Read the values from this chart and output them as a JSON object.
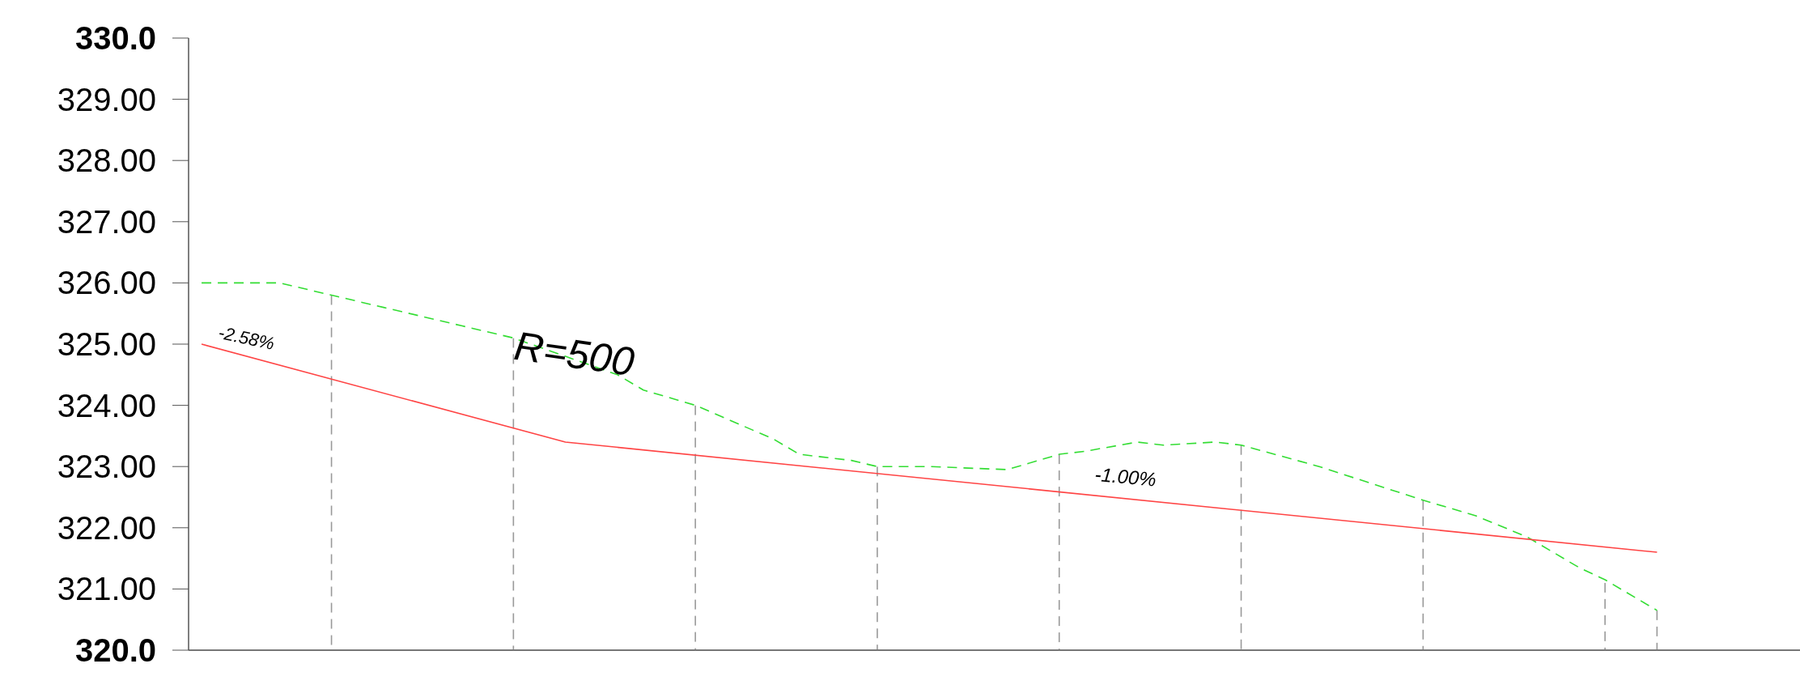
{
  "chart_data": {
    "type": "line",
    "categories": [
      null,
      null,
      null,
      null,
      null,
      null,
      null,
      null,
      null,
      null,
      null,
      null,
      null,
      null,
      null,
      null,
      null,
      null,
      null,
      null,
      null,
      null,
      null,
      null,
      null,
      null,
      null,
      null,
      null,
      null,
      null,
      null,
      null,
      null,
      null,
      null,
      null,
      null,
      null,
      null,
      null,
      null,
      null,
      null,
      null,
      null,
      null,
      null,
      null,
      null,
      null,
      null,
      null,
      null,
      null,
      null,
      null,
      null,
      null,
      null,
      null,
      null
    ],
    "series": [
      {
        "type": "bar",
        "color": "#999999",
        "line_style": "dashed",
        "values": [
          null,
          null,
          null,
          null,
          null,
          325.8,
          null,
          null,
          null,
          null,
          null,
          null,
          325.1,
          null,
          null,
          null,
          null,
          null,
          null,
          324.0,
          null,
          null,
          null,
          null,
          null,
          null,
          323.0,
          null,
          null,
          null,
          null,
          null,
          null,
          323.2,
          null,
          null,
          null,
          null,
          null,
          null,
          323.35,
          null,
          null,
          null,
          null,
          null,
          null,
          322.45,
          null,
          null,
          null,
          null,
          null,
          null,
          321.1,
          null,
          320.65,
          null,
          null,
          null,
          null,
          null
        ]
      },
      {
        "color": "#33dd33",
        "line_style": "dashed",
        "values": [
          326.0,
          null,
          null,
          326.0,
          null,
          325.8,
          null,
          325.6,
          null,
          null,
          325.3,
          null,
          325.1,
          null,
          324.8,
          null,
          324.5,
          324.25,
          null,
          324.0,
          null,
          null,
          323.45,
          323.2,
          null,
          323.1,
          323.0,
          null,
          323.0,
          null,
          null,
          322.95,
          null,
          323.2,
          323.25,
          null,
          323.4,
          323.35,
          null,
          323.4,
          323.35,
          null,
          null,
          323.0,
          null,
          null,
          null,
          322.45,
          null,
          322.2,
          null,
          321.85,
          null,
          321.35,
          321.15,
          null,
          320.65,
          null,
          null,
          null,
          null,
          null
        ]
      },
      {
        "color": "#ff4444",
        "line_style": "solid",
        "values": [
          325.0,
          null,
          null,
          null,
          null,
          null,
          null,
          null,
          null,
          null,
          null,
          null,
          null,
          null,
          323.4,
          null,
          null,
          null,
          null,
          null,
          null,
          null,
          null,
          null,
          null,
          null,
          null,
          null,
          null,
          null,
          null,
          null,
          null,
          null,
          null,
          null,
          null,
          null,
          null,
          null,
          null,
          null,
          null,
          null,
          null,
          null,
          null,
          null,
          null,
          null,
          null,
          null,
          null,
          null,
          null,
          null,
          321.6,
          null,
          null,
          null,
          null,
          null
        ]
      }
    ],
    "ylim": [
      320,
      330
    ],
    "yticks": [
      {
        "value": 320,
        "label": "320.0"
      },
      {
        "value": 321,
        "label": "321.00"
      },
      {
        "value": 322,
        "label": "322.00"
      },
      {
        "value": 323,
        "label": "323.00"
      },
      {
        "value": 324,
        "label": "324.00"
      },
      {
        "value": 325,
        "label": "325.00"
      },
      {
        "value": 326,
        "label": "326.00"
      },
      {
        "value": 327,
        "label": "327.00"
      },
      {
        "value": 328,
        "label": "328.00"
      },
      {
        "value": 329,
        "label": "329.00"
      },
      {
        "value": 330,
        "label": "330.0"
      }
    ],
    "tick_labels": "y",
    "annotations": [
      "-2.58%",
      "R=500",
      "-1.00%"
    ]
  }
}
